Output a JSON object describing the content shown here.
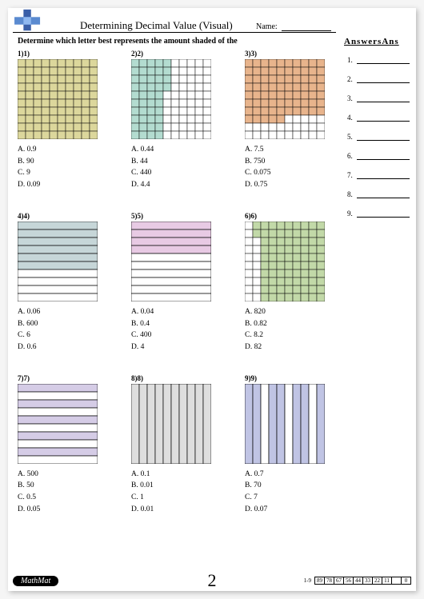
{
  "title": "Determining Decimal Value (Visual)",
  "name_label": "Name:",
  "instruction": "Determine which letter best represents the amount shaded of the",
  "answers_header": "AnswersAns",
  "page_number": "2",
  "footer_brand": "MathMat",
  "score_label": "1-9",
  "score_cells": [
    "89",
    "78",
    "67",
    "56",
    "44",
    "33",
    "22",
    "11",
    "",
    "0"
  ],
  "colors": {
    "q1": "#dcd79c",
    "q2": "#b3dcd0",
    "q3": "#e8b48c",
    "q4": "#c6d6d8",
    "q5": "#e8cae4",
    "q6": "#c2d9a8",
    "q7": "#d5cce6",
    "q8": "#dedede",
    "q9": "#c0c4e4",
    "grid_line": "#000000",
    "grid_bg": "#ffffff"
  },
  "questions": [
    {
      "label": "1)1)",
      "type": "grid10x10",
      "shaded": 100,
      "fill": "#dcd79c",
      "choices": [
        "A. 0.9",
        "B. 90",
        "C. 9",
        "D. 0.09"
      ]
    },
    {
      "label": "2)2)",
      "type": "grid10x10",
      "shaded": 44,
      "fill": "#b3dcd0",
      "mode": "columns-first",
      "choices": [
        "A. 0.44",
        "B. 44",
        "C. 440",
        "D. 4.4"
      ]
    },
    {
      "label": "3)3)",
      "type": "grid10x10",
      "shaded": 75,
      "fill": "#e8b48c",
      "mode": "rows-gap",
      "choices": [
        "A. 7.5",
        "B. 750",
        "C. 0.075",
        "D. 0.75"
      ]
    },
    {
      "label": "4)4)",
      "type": "rows10",
      "shaded": 6,
      "fill": "#c6d6d8",
      "choices": [
        "A. 0.06",
        "B. 600",
        "C. 6",
        "D. 0.6"
      ]
    },
    {
      "label": "5)5)",
      "type": "rows10",
      "shaded": 4,
      "fill": "#e8cae4",
      "choices": [
        "A. 0.04",
        "B. 0.4",
        "C. 400",
        "D. 4"
      ]
    },
    {
      "label": "6)6)",
      "type": "grid10x10",
      "shaded": 82,
      "fill": "#c2d9a8",
      "mode": "columns-first-right",
      "choices": [
        "A. 820",
        "B. 0.82",
        "C. 8.2",
        "D. 82"
      ]
    },
    {
      "label": "7)7)",
      "type": "rows10",
      "shaded": 5,
      "fill": "#d5cce6",
      "mode": "alternating",
      "choices": [
        "A. 500",
        "B. 50",
        "C. 0.5",
        "D. 0.05"
      ]
    },
    {
      "label": "8)8)",
      "type": "cols10",
      "shaded": 10,
      "fill": "#dedede",
      "choices": [
        "A. 0.1",
        "B. 0.01",
        "C. 1",
        "D. 0.01"
      ]
    },
    {
      "label": "9)9)",
      "type": "cols10",
      "shaded": 7,
      "fill": "#c0c4e4",
      "mode": "pattern",
      "pattern": [
        1,
        1,
        0,
        1,
        1,
        0,
        1,
        1,
        0,
        1
      ],
      "choices": [
        "A. 0.7",
        "B. 70",
        "C. 7",
        "D. 0.07"
      ]
    }
  ],
  "answer_numbers": [
    "1.",
    "2.",
    "3.",
    "4.",
    "5.",
    "6.",
    "7.",
    "8.",
    "9."
  ]
}
